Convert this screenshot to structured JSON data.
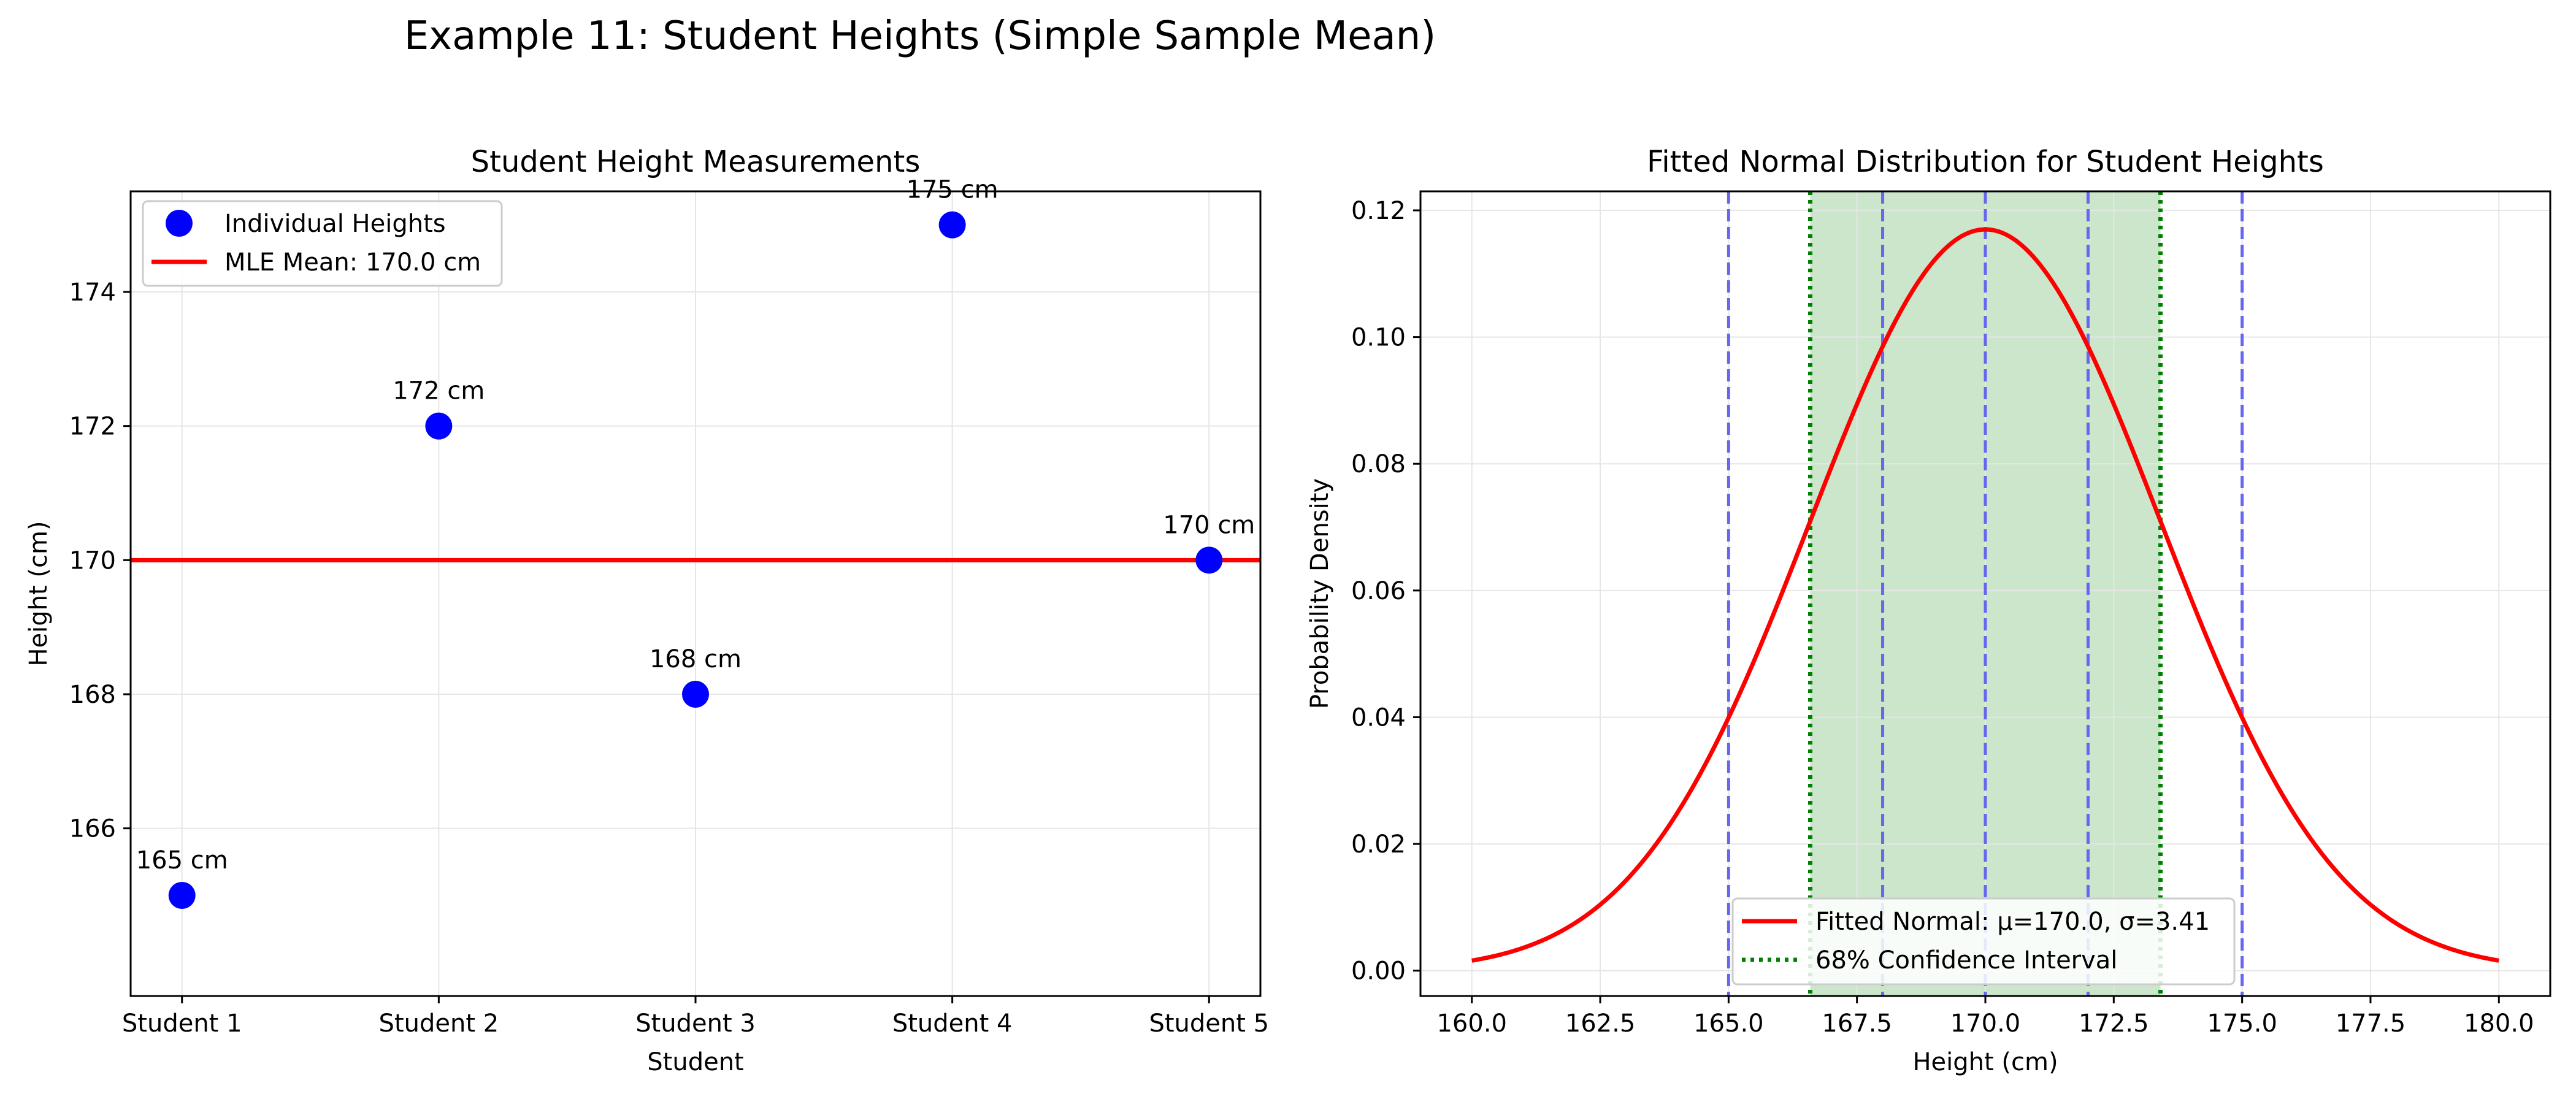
{
  "figure": {
    "suptitle": "Example 11: Student Heights (Simple Sample Mean)"
  },
  "colors": {
    "point": "#0000ff",
    "mean_line": "#ff0000",
    "pdf_line": "#ff0000",
    "vlines": "#6666ee",
    "ci_line": "#008000",
    "ci_fill": "#cce6cc",
    "grid": "#e6e6e6"
  },
  "chart_data": [
    {
      "type": "scatter",
      "title": "Student Height Measurements",
      "xlabel": "Student",
      "ylabel": "Height (cm)",
      "categories": [
        "Student 1",
        "Student 2",
        "Student 3",
        "Student 4",
        "Student 5"
      ],
      "values": [
        165,
        172,
        168,
        175,
        170
      ],
      "point_labels": [
        "165 cm",
        "172 cm",
        "168 cm",
        "175 cm",
        "170 cm"
      ],
      "mean": 170.0,
      "xlim": [
        -0.2,
        4.2
      ],
      "ylim": [
        163.5,
        175.5
      ],
      "yticks": [
        166,
        168,
        170,
        172,
        174
      ],
      "ytick_labels": [
        "166",
        "168",
        "170",
        "172",
        "174"
      ],
      "grid": true,
      "legend": {
        "placement": "upper-left",
        "entries": [
          {
            "label": "Individual Heights",
            "kind": "marker"
          },
          {
            "label": "MLE Mean: 170.0 cm",
            "kind": "line"
          }
        ]
      }
    },
    {
      "type": "line",
      "title": "Fitted Normal Distribution for Student Heights",
      "xlabel": "Height (cm)",
      "ylabel": "Probability Density",
      "series": [
        {
          "name": "Fitted Normal: μ=170.0, σ=3.41",
          "mu": 170.0,
          "sigma": 3.41,
          "x_range": [
            160,
            180
          ]
        }
      ],
      "confidence_interval": {
        "name": "68% Confidence Interval",
        "lower": 166.59,
        "upper": 173.41
      },
      "data_vlines": [
        165,
        168,
        170,
        172,
        175
      ],
      "xlim": [
        159,
        181
      ],
      "ylim": [
        -0.004,
        0.123
      ],
      "xticks": [
        160,
        162.5,
        165,
        167.5,
        170,
        172.5,
        175,
        177.5,
        180
      ],
      "xtick_labels": [
        "160.0",
        "162.5",
        "165.0",
        "167.5",
        "170.0",
        "172.5",
        "175.0",
        "177.5",
        "180.0"
      ],
      "yticks": [
        0,
        0.02,
        0.04,
        0.06,
        0.08,
        0.1,
        0.12
      ],
      "ytick_labels": [
        "0.00",
        "0.02",
        "0.04",
        "0.06",
        "0.08",
        "0.10",
        "0.12"
      ],
      "grid": true,
      "legend": {
        "placement": "lower-center"
      }
    }
  ]
}
